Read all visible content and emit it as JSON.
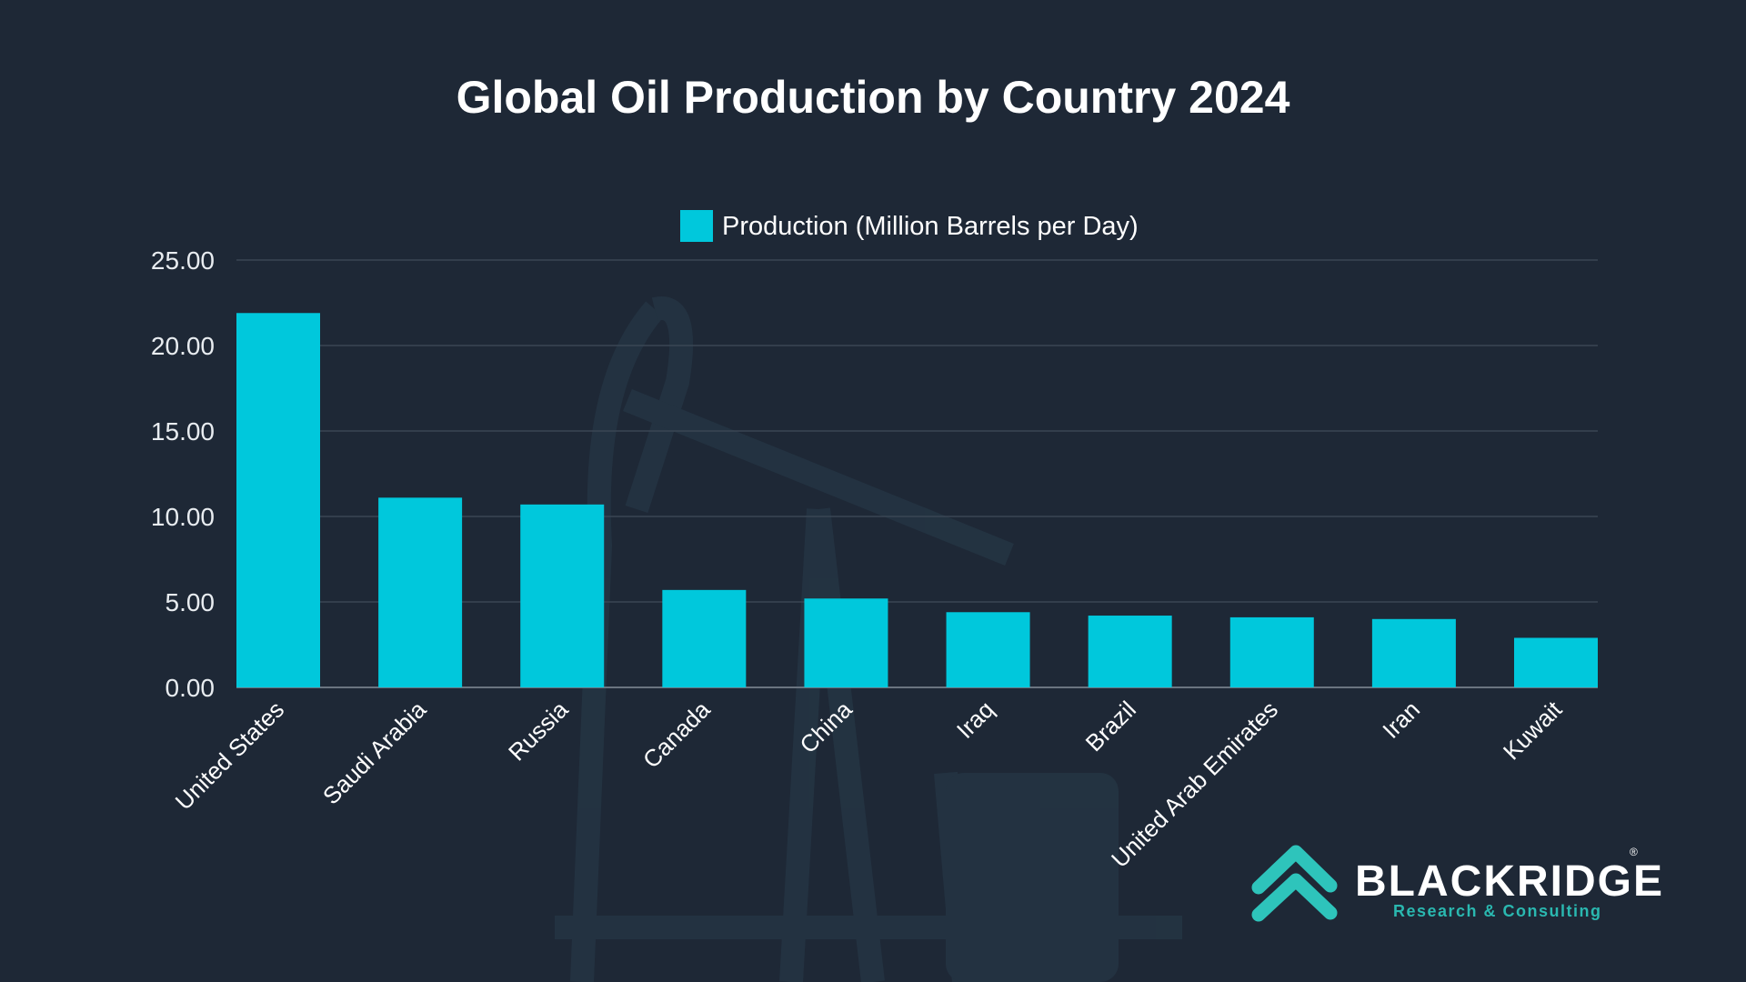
{
  "chart_data": {
    "type": "bar",
    "title": "Global Oil Production by Country 2024",
    "xlabel": "",
    "ylabel": "",
    "categories": [
      "United States",
      "Saudi Arabia",
      "Russia",
      "Canada",
      "China",
      "Iraq",
      "Brazil",
      "United Arab Emirates",
      "Iran",
      "Kuwait"
    ],
    "series": [
      {
        "name": "Production (Million Barrels per Day)",
        "values": [
          21.9,
          11.1,
          10.7,
          5.7,
          5.2,
          4.4,
          4.2,
          4.1,
          4.0,
          2.9
        ]
      }
    ],
    "ylim": [
      0,
      25
    ],
    "yticks": [
      "0.00",
      "5.00",
      "10.00",
      "15.00",
      "20.00",
      "25.00"
    ],
    "grid": true,
    "legend_position": "top-center",
    "bar_color": "#00c8dc"
  },
  "branding": {
    "name": "BLACKRIDGE",
    "tagline": "Research & Consulting",
    "registered_mark": "®",
    "accent": "#2ab8b0"
  }
}
